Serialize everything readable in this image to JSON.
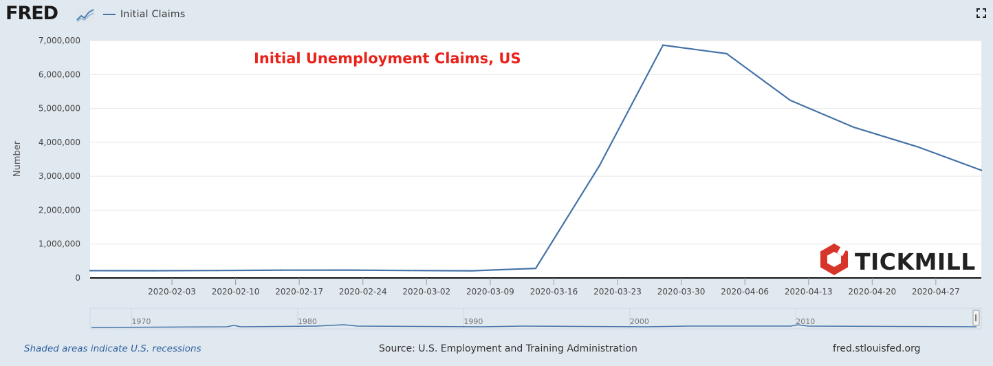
{
  "header": {
    "logo_text": "FRED",
    "logo_icon": "line-chart-icon",
    "legend_label": "Initial Claims",
    "expand_icon": "expand-icon"
  },
  "colors": {
    "series": "#4572a7",
    "title": "#e8231b",
    "brand": "#d8352a"
  },
  "chart_data": {
    "type": "line",
    "title": "Initial Unemployment Claims, US",
    "xlabel": "",
    "ylabel": "Number",
    "ylim": [
      0,
      7000000
    ],
    "yticks": [
      0,
      1000000,
      2000000,
      3000000,
      4000000,
      5000000,
      6000000,
      7000000
    ],
    "ytick_labels": [
      "0",
      "1,000,000",
      "2,000,000",
      "3,000,000",
      "4,000,000",
      "5,000,000",
      "6,000,000",
      "7,000,000"
    ],
    "xlim": [
      "2020-01-25",
      "2020-05-02"
    ],
    "xtick_labels": [
      "2020-02-03",
      "2020-02-10",
      "2020-02-17",
      "2020-02-24",
      "2020-03-02",
      "2020-03-09",
      "2020-03-16",
      "2020-03-23",
      "2020-03-30",
      "2020-04-06",
      "2020-04-13",
      "2020-04-20",
      "2020-04-27"
    ],
    "grid": true,
    "series": [
      {
        "name": "Initial Claims",
        "x": [
          "2020-01-25",
          "2020-02-01",
          "2020-02-08",
          "2020-02-15",
          "2020-02-22",
          "2020-02-29",
          "2020-03-07",
          "2020-03-14",
          "2020-03-21",
          "2020-03-28",
          "2020-04-04",
          "2020-04-11",
          "2020-04-18",
          "2020-04-25",
          "2020-05-02"
        ],
        "values": [
          216000,
          214000,
          220000,
          230000,
          232000,
          219000,
          212000,
          282000,
          3307000,
          6867000,
          6615000,
          5237000,
          4442000,
          3867000,
          3176000
        ]
      }
    ]
  },
  "navigator": {
    "year_labels": [
      "1970",
      "1980",
      "1990",
      "2000",
      "2010"
    ]
  },
  "watermark": {
    "text": "TICKMILL"
  },
  "footer": {
    "recession_note": "Shaded areas indicate U.S. recessions",
    "source": "Source: U.S. Employment and Training Administration",
    "link": "fred.stlouisfed.org"
  }
}
